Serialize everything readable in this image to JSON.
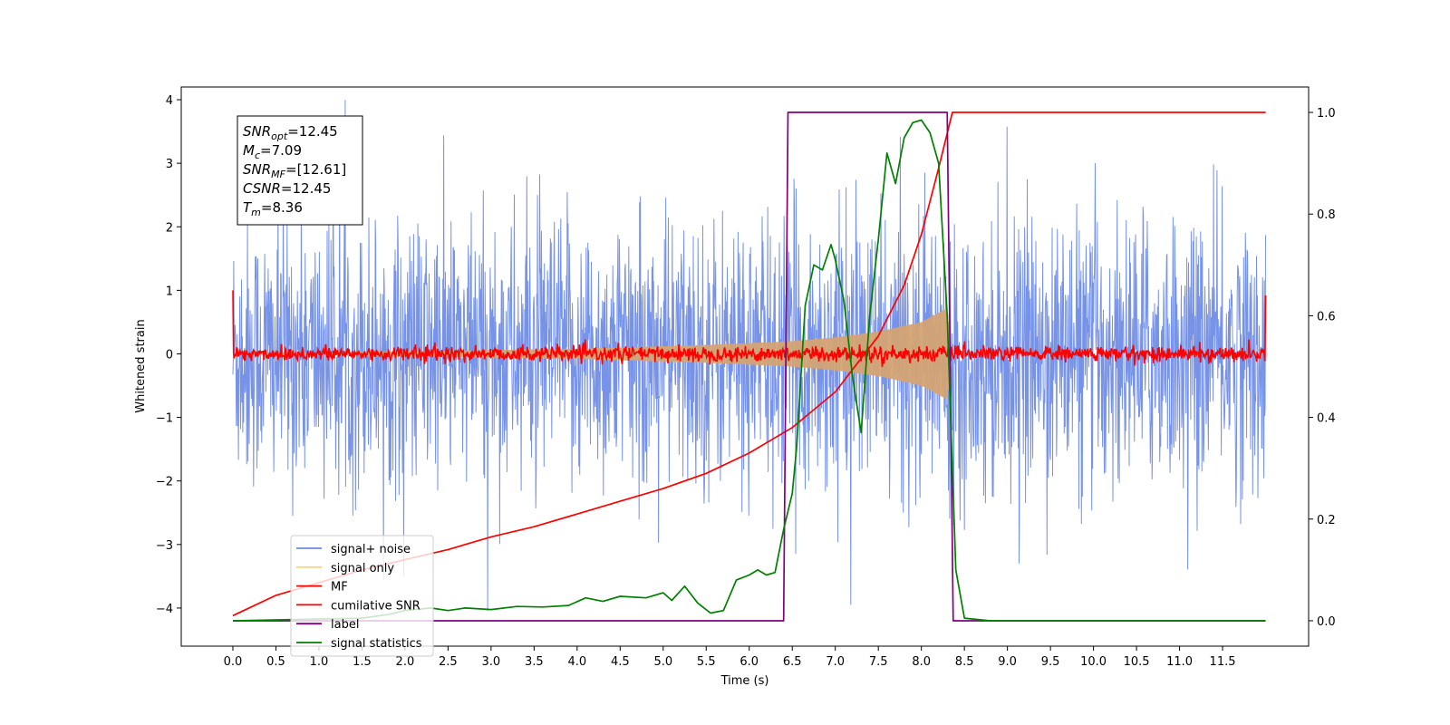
{
  "chart_data": {
    "type": "line",
    "xlabel": "Time (s)",
    "ylabel": "Whitened strain",
    "xlim": [
      -0.6,
      12.5
    ],
    "ylim": [
      -4.6,
      4.2
    ],
    "ylim_right": [
      -0.05,
      1.05
    ],
    "x_ticks": [
      "0.0",
      "0.5",
      "1.0",
      "1.5",
      "2.0",
      "2.5",
      "3.0",
      "3.5",
      "4.0",
      "4.5",
      "5.0",
      "5.5",
      "6.0",
      "6.5",
      "7.0",
      "7.5",
      "8.0",
      "8.5",
      "9.0",
      "9.5",
      "10.0",
      "10.5",
      "11.0",
      "11.5"
    ],
    "y_ticks": [
      "4",
      "3",
      "2",
      "1",
      "0",
      "−1",
      "−2",
      "−3",
      "−4"
    ],
    "y_ticks_right": [
      "1.0",
      "0.8",
      "0.6",
      "0.4",
      "0.2",
      "0.0"
    ],
    "annotation": {
      "lines": [
        {
          "name": "SNR",
          "sub": "opt",
          "value": "=12.45"
        },
        {
          "name": "M",
          "sub": "c",
          "value": "=7.09"
        },
        {
          "name": "SNR",
          "sub": "MF",
          "value": "=[12.61]"
        },
        {
          "name": "CSNR",
          "sub": "",
          "value": "=12.45"
        },
        {
          "name": "T",
          "sub": "m",
          "value": "=8.36"
        }
      ]
    },
    "legend": {
      "placement": "lower-left",
      "entries": [
        {
          "label": "signal+ noise",
          "color": "#6b8ae6"
        },
        {
          "label": "signal only",
          "color": "#ffd27f"
        },
        {
          "label": "MF",
          "color": "#ff0000"
        },
        {
          "label": "cumilative SNR",
          "color": "#ff0000"
        },
        {
          "label": "label",
          "color": "#800080"
        },
        {
          "label": "signal statistics",
          "color": "#008000"
        }
      ]
    },
    "series": [
      {
        "name": "signal+ noise",
        "axis": "left",
        "color": "#6b8ae6",
        "style": "noise",
        "x_range": [
          0.0,
          12.0
        ],
        "amplitude_sd": 1.05
      },
      {
        "name": "signal only",
        "axis": "left",
        "color": "#d4a373",
        "style": "chirp",
        "points": [
          [
            0.0,
            0.0
          ],
          [
            4.0,
            0.08
          ],
          [
            5.5,
            0.14
          ],
          [
            6.5,
            0.2
          ],
          [
            7.0,
            0.26
          ],
          [
            7.5,
            0.35
          ],
          [
            8.0,
            0.5
          ],
          [
            8.3,
            0.72
          ],
          [
            8.36,
            0.0
          ]
        ]
      },
      {
        "name": "MF",
        "axis": "left",
        "color": "#ff0000",
        "style": "noise-small",
        "x_range": [
          0.0,
          12.0
        ],
        "amplitude_sd": 0.06,
        "edge_values": [
          1.0,
          0.92
        ]
      },
      {
        "name": "cumilative SNR",
        "axis": "right",
        "color": "#ff0000",
        "points": [
          [
            0.0,
            0.01
          ],
          [
            0.5,
            0.05
          ],
          [
            1.0,
            0.075
          ],
          [
            1.5,
            0.1
          ],
          [
            2.0,
            0.12
          ],
          [
            2.5,
            0.14
          ],
          [
            3.0,
            0.165
          ],
          [
            3.5,
            0.185
          ],
          [
            4.0,
            0.21
          ],
          [
            4.5,
            0.235
          ],
          [
            5.0,
            0.26
          ],
          [
            5.5,
            0.29
          ],
          [
            6.0,
            0.33
          ],
          [
            6.5,
            0.38
          ],
          [
            7.0,
            0.45
          ],
          [
            7.5,
            0.56
          ],
          [
            7.8,
            0.66
          ],
          [
            8.0,
            0.76
          ],
          [
            8.2,
            0.89
          ],
          [
            8.36,
            1.0
          ],
          [
            12.0,
            1.0
          ]
        ]
      },
      {
        "name": "label",
        "axis": "right",
        "color": "#800080",
        "points": [
          [
            0.0,
            0.0
          ],
          [
            6.4,
            0.0
          ],
          [
            6.45,
            1.0
          ],
          [
            8.3,
            1.0
          ],
          [
            8.37,
            0.0
          ],
          [
            12.0,
            0.0
          ]
        ]
      },
      {
        "name": "signal statistics",
        "axis": "right",
        "color": "#008000",
        "points": [
          [
            0.0,
            0.0
          ],
          [
            1.5,
            0.005
          ],
          [
            1.8,
            0.012
          ],
          [
            2.0,
            0.02
          ],
          [
            2.3,
            0.025
          ],
          [
            2.5,
            0.02
          ],
          [
            2.7,
            0.025
          ],
          [
            3.0,
            0.022
          ],
          [
            3.3,
            0.028
          ],
          [
            3.6,
            0.027
          ],
          [
            3.9,
            0.03
          ],
          [
            4.1,
            0.045
          ],
          [
            4.3,
            0.038
          ],
          [
            4.5,
            0.048
          ],
          [
            4.8,
            0.045
          ],
          [
            5.0,
            0.055
          ],
          [
            5.1,
            0.04
          ],
          [
            5.25,
            0.068
          ],
          [
            5.4,
            0.035
          ],
          [
            5.55,
            0.015
          ],
          [
            5.7,
            0.02
          ],
          [
            5.85,
            0.08
          ],
          [
            6.0,
            0.09
          ],
          [
            6.1,
            0.1
          ],
          [
            6.2,
            0.09
          ],
          [
            6.3,
            0.095
          ],
          [
            6.4,
            0.18
          ],
          [
            6.5,
            0.25
          ],
          [
            6.55,
            0.34
          ],
          [
            6.65,
            0.62
          ],
          [
            6.75,
            0.7
          ],
          [
            6.85,
            0.69
          ],
          [
            6.95,
            0.74
          ],
          [
            7.0,
            0.71
          ],
          [
            7.1,
            0.63
          ],
          [
            7.2,
            0.48
          ],
          [
            7.3,
            0.37
          ],
          [
            7.4,
            0.6
          ],
          [
            7.5,
            0.75
          ],
          [
            7.6,
            0.92
          ],
          [
            7.7,
            0.86
          ],
          [
            7.8,
            0.95
          ],
          [
            7.9,
            0.98
          ],
          [
            8.0,
            0.985
          ],
          [
            8.1,
            0.96
          ],
          [
            8.2,
            0.9
          ],
          [
            8.3,
            0.6
          ],
          [
            8.4,
            0.1
          ],
          [
            8.5,
            0.005
          ],
          [
            8.8,
            0.0
          ],
          [
            12.0,
            0.0
          ]
        ]
      }
    ]
  }
}
